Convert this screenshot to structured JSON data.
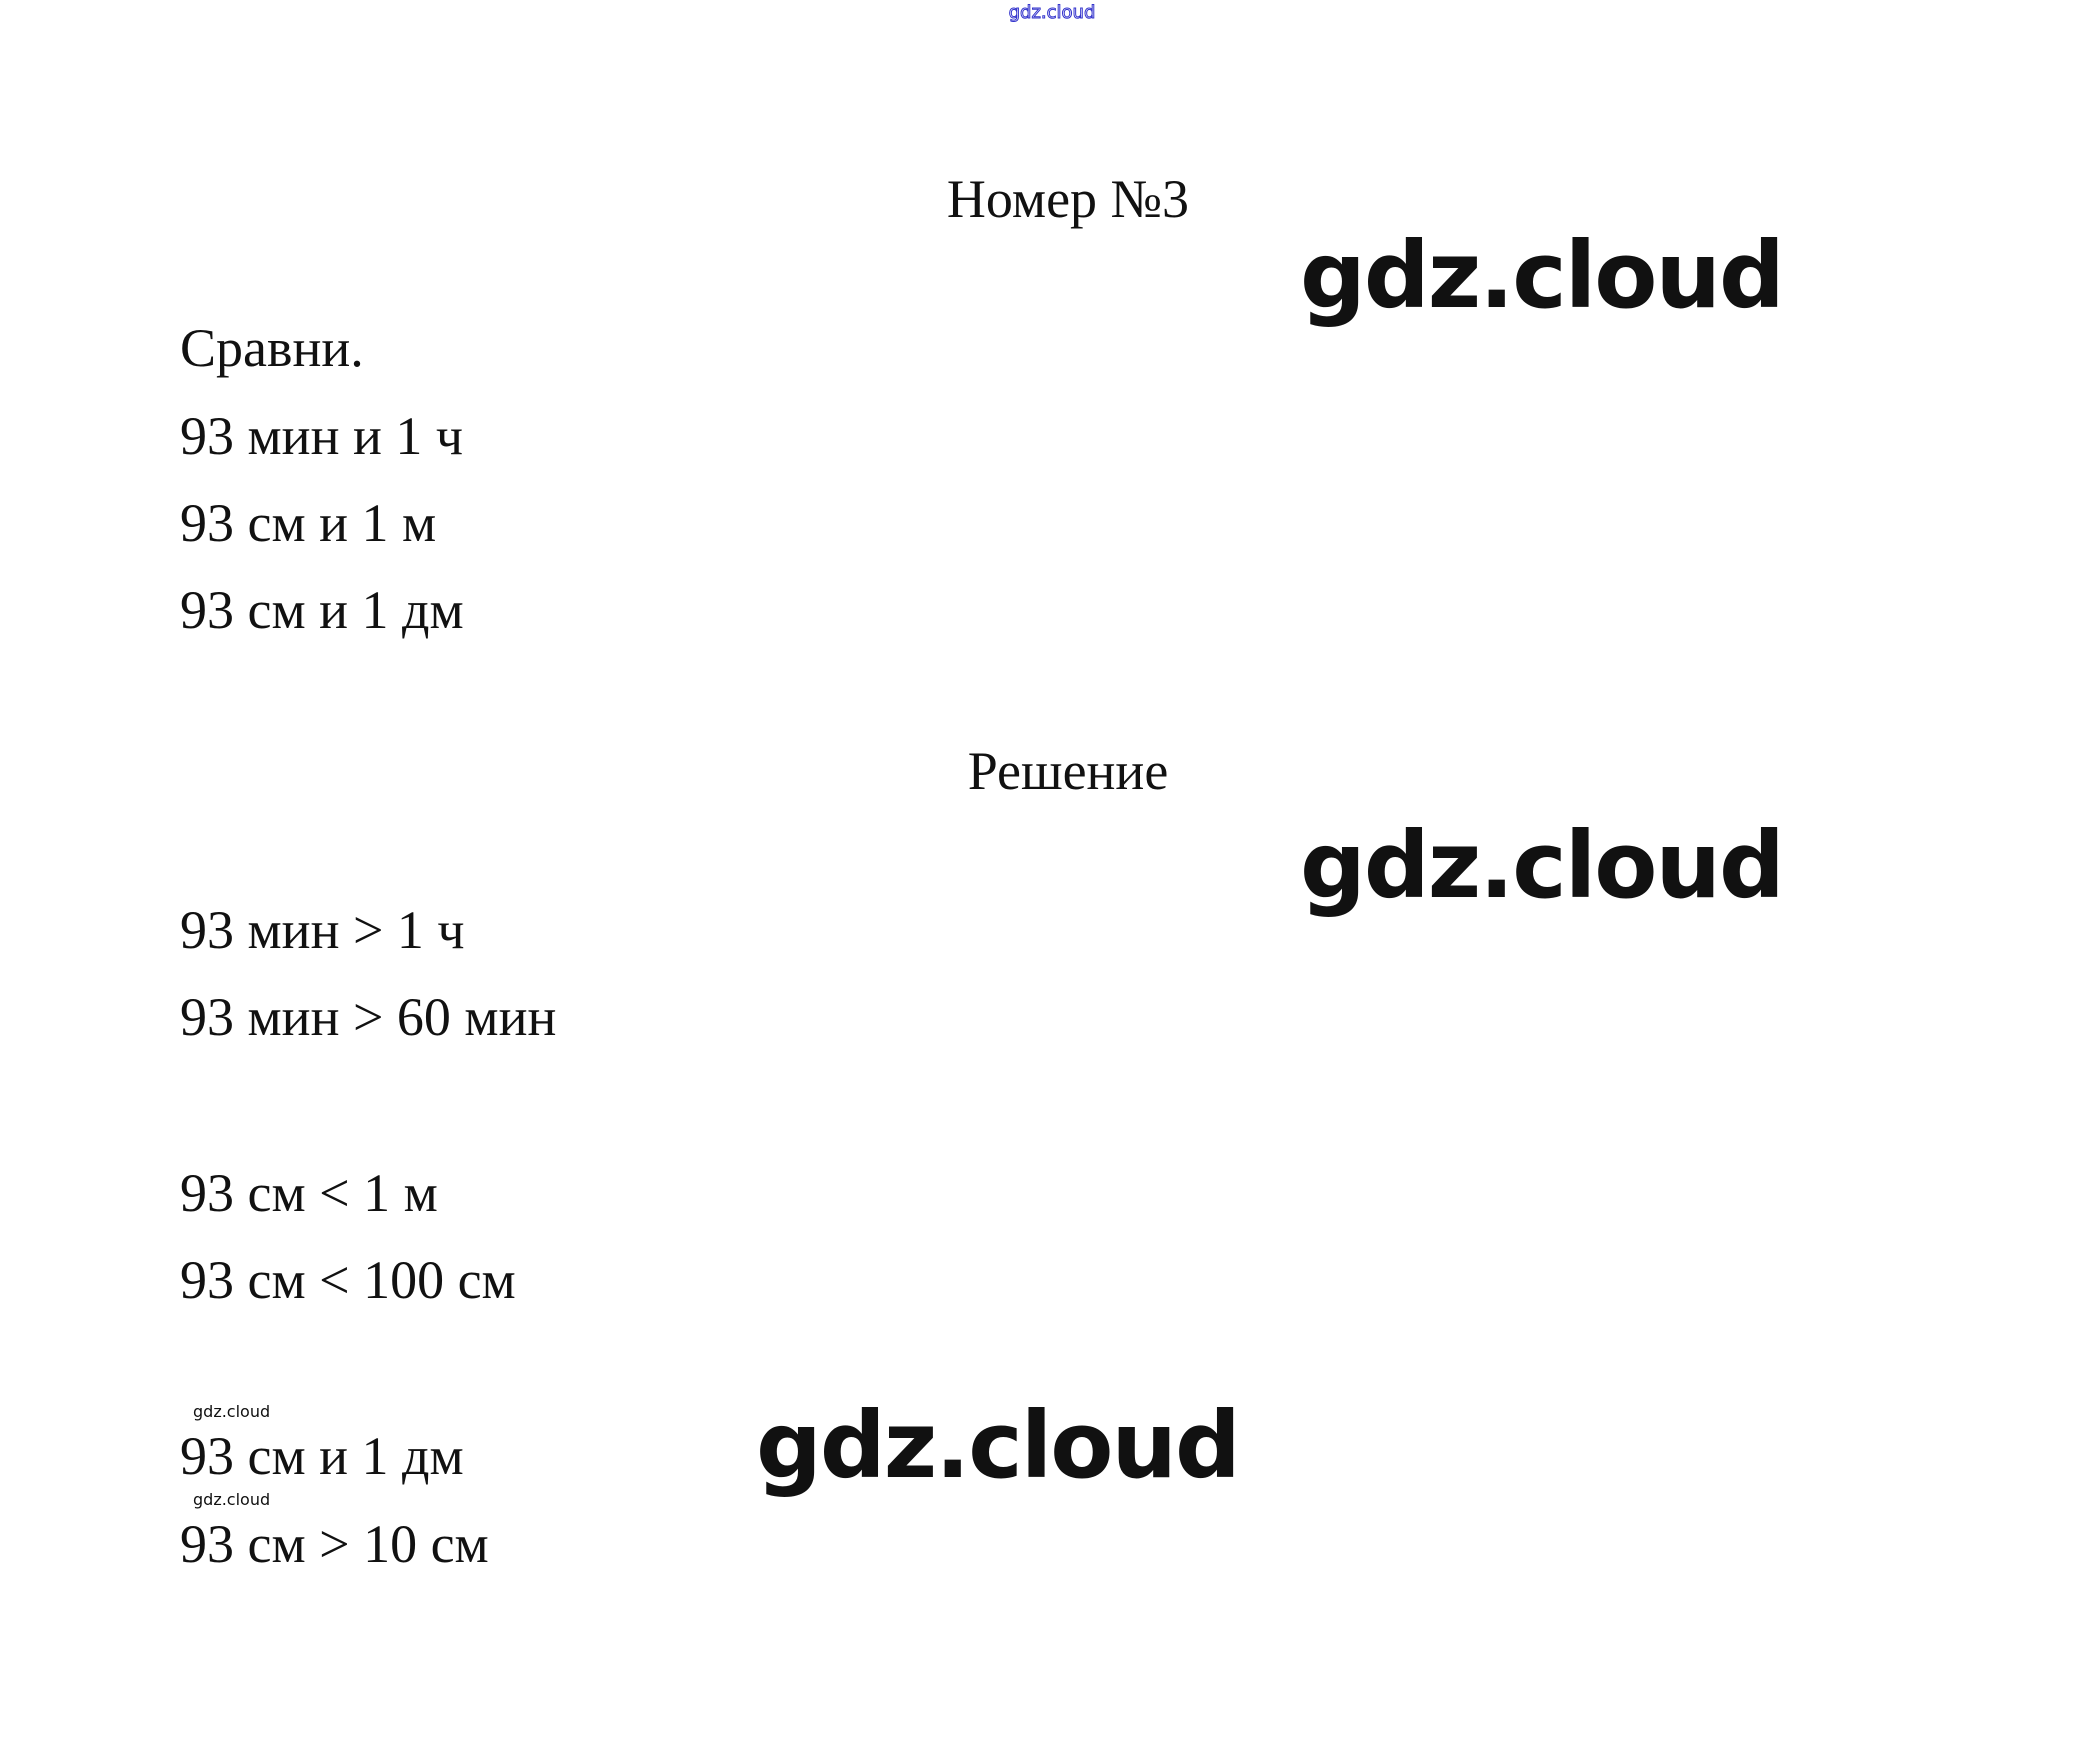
{
  "header": {
    "site_link": "gdz.cloud"
  },
  "title": "Номер №3",
  "task": {
    "prompt": "Сравни.",
    "items": [
      "93 мин и 1 ч",
      "93 см и 1 м",
      "93 см и 1 дм"
    ]
  },
  "solution": {
    "heading": "Решение",
    "lines": [
      "93 мин > 1 ч",
      "93 мин > 60 мин",
      "93 см < 1 м",
      "93 см < 100 см",
      "93 см и 1 дм",
      "93 см > 10 см"
    ]
  },
  "watermarks": {
    "large": "gdz.cloud",
    "small": "gdz.cloud"
  },
  "colors": {
    "link": "#3333cc",
    "text": "#111111"
  }
}
